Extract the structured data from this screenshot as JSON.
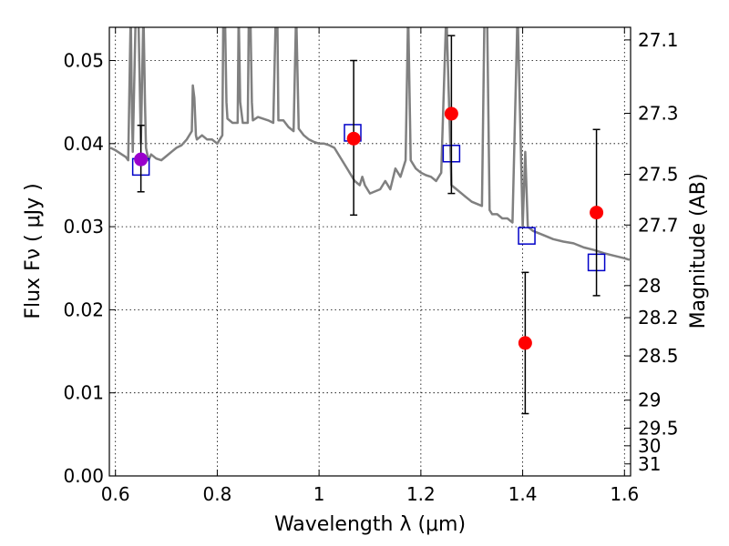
{
  "chart_data": {
    "type": "scatter",
    "xlabel": "Wavelength  λ (μm)",
    "ylabel": "Flux  Fν  ( μJy )",
    "y2label": "Magnitude (AB)",
    "xlim": [
      0.588,
      1.612
    ],
    "ylim": [
      0.0,
      0.054
    ],
    "grid": true,
    "colors": {
      "spectrum": "#808080",
      "model": "#0000c8",
      "observed": "#ff0000",
      "highlight": "#9900cc",
      "errorbar": "#000000"
    },
    "x_ticks": [
      {
        "v": 0.6,
        "label": "0.6"
      },
      {
        "v": 0.8,
        "label": "0.8"
      },
      {
        "v": 1.0,
        "label": "1"
      },
      {
        "v": 1.2,
        "label": "1.2"
      },
      {
        "v": 1.4,
        "label": "1.4"
      },
      {
        "v": 1.6,
        "label": "1.6"
      }
    ],
    "y_ticks": [
      {
        "v": 0.0,
        "label": "0.00"
      },
      {
        "v": 0.01,
        "label": "0.01"
      },
      {
        "v": 0.02,
        "label": "0.02"
      },
      {
        "v": 0.03,
        "label": "0.03"
      },
      {
        "v": 0.04,
        "label": "0.04"
      },
      {
        "v": 0.05,
        "label": "0.05"
      }
    ],
    "y2_ticks": [
      {
        "flux": 0.05248,
        "label": "27.1"
      },
      {
        "flux": 0.04365,
        "label": "27.3"
      },
      {
        "flux": 0.03631,
        "label": "27.5"
      },
      {
        "flux": 0.0302,
        "label": "27.7"
      },
      {
        "flux": 0.02291,
        "label": "28"
      },
      {
        "flux": 0.01905,
        "label": "28.2"
      },
      {
        "flux": 0.01445,
        "label": "28.5"
      },
      {
        "flux": 0.00912,
        "label": "29"
      },
      {
        "flux": 0.00575,
        "label": "29.5"
      },
      {
        "flux": 0.00363,
        "label": "30"
      },
      {
        "flux": 0.00145,
        "label": "31"
      }
    ],
    "spectrum": {
      "x": [
        0.59,
        0.6,
        0.61,
        0.62,
        0.625,
        0.63,
        0.632,
        0.634,
        0.64,
        0.645,
        0.65,
        0.655,
        0.658,
        0.66,
        0.665,
        0.67,
        0.68,
        0.69,
        0.7,
        0.71,
        0.72,
        0.73,
        0.74,
        0.75,
        0.752,
        0.755,
        0.758,
        0.76,
        0.77,
        0.78,
        0.79,
        0.8,
        0.81,
        0.812,
        0.815,
        0.818,
        0.82,
        0.83,
        0.84,
        0.842,
        0.845,
        0.85,
        0.86,
        0.862,
        0.865,
        0.868,
        0.87,
        0.88,
        0.89,
        0.9,
        0.91,
        0.915,
        0.918,
        0.92,
        0.93,
        0.94,
        0.95,
        0.955,
        0.96,
        0.97,
        0.98,
        0.99,
        1.0,
        1.01,
        1.02,
        1.03,
        1.04,
        1.05,
        1.06,
        1.07,
        1.08,
        1.085,
        1.09,
        1.1,
        1.12,
        1.13,
        1.14,
        1.15,
        1.16,
        1.17,
        1.175,
        1.18,
        1.19,
        1.2,
        1.21,
        1.22,
        1.23,
        1.24,
        1.25,
        1.26,
        1.27,
        1.28,
        1.29,
        1.3,
        1.32,
        1.325,
        1.33,
        1.335,
        1.34,
        1.35,
        1.36,
        1.37,
        1.38,
        1.39,
        1.4,
        1.405,
        1.41,
        1.42,
        1.44,
        1.46,
        1.48,
        1.5,
        1.52,
        1.54,
        1.56,
        1.58,
        1.6,
        1.61
      ],
      "y": [
        0.0395,
        0.0392,
        0.0388,
        0.0384,
        0.038,
        0.056,
        0.045,
        0.039,
        0.056,
        0.056,
        0.04,
        0.056,
        0.045,
        0.0395,
        0.038,
        0.0387,
        0.0382,
        0.038,
        0.0385,
        0.039,
        0.0395,
        0.0398,
        0.0405,
        0.0415,
        0.047,
        0.0455,
        0.041,
        0.0405,
        0.041,
        0.0405,
        0.0405,
        0.04,
        0.041,
        0.056,
        0.056,
        0.045,
        0.043,
        0.0425,
        0.0425,
        0.056,
        0.045,
        0.0425,
        0.0425,
        0.056,
        0.056,
        0.045,
        0.0428,
        0.0432,
        0.043,
        0.0428,
        0.0425,
        0.056,
        0.056,
        0.0428,
        0.0428,
        0.042,
        0.0415,
        0.056,
        0.0418,
        0.041,
        0.0405,
        0.0402,
        0.04,
        0.04,
        0.0398,
        0.0395,
        0.0385,
        0.0375,
        0.0365,
        0.0355,
        0.035,
        0.036,
        0.035,
        0.034,
        0.0345,
        0.0355,
        0.0345,
        0.037,
        0.036,
        0.038,
        0.056,
        0.038,
        0.037,
        0.0365,
        0.0362,
        0.036,
        0.0355,
        0.0365,
        0.056,
        0.035,
        0.0345,
        0.034,
        0.0335,
        0.033,
        0.0325,
        0.056,
        0.056,
        0.032,
        0.0315,
        0.0315,
        0.031,
        0.031,
        0.0305,
        0.056,
        0.03,
        0.039,
        0.03,
        0.0295,
        0.029,
        0.0285,
        0.0282,
        0.028,
        0.0275,
        0.0272,
        0.0268,
        0.0265,
        0.0262,
        0.026
      ]
    },
    "series": [
      {
        "marker": "open-square",
        "color": "#0000c8",
        "points": [
          {
            "x": 0.65,
            "y": 0.0372
          },
          {
            "x": 1.066,
            "y": 0.0413
          },
          {
            "x": 1.26,
            "y": 0.0388
          },
          {
            "x": 1.408,
            "y": 0.0289
          },
          {
            "x": 1.545,
            "y": 0.0257
          }
        ]
      },
      {
        "marker": "filled-circle",
        "color": "#ff0000",
        "points": [
          {
            "x": 0.65,
            "y": 0.0381,
            "err_low": 0.0039,
            "err_high": 0.0041,
            "color": "#9900cc"
          },
          {
            "x": 1.068,
            "y": 0.0406,
            "err_low": 0.0092,
            "err_high": 0.0094
          },
          {
            "x": 1.26,
            "y": 0.0436,
            "err_low": 0.0096,
            "err_high": 0.0094
          },
          {
            "x": 1.405,
            "y": 0.016,
            "err_low": 0.0085,
            "err_high": 0.0085
          },
          {
            "x": 1.545,
            "y": 0.0317,
            "err_low": 0.01,
            "err_high": 0.01
          }
        ]
      }
    ]
  }
}
